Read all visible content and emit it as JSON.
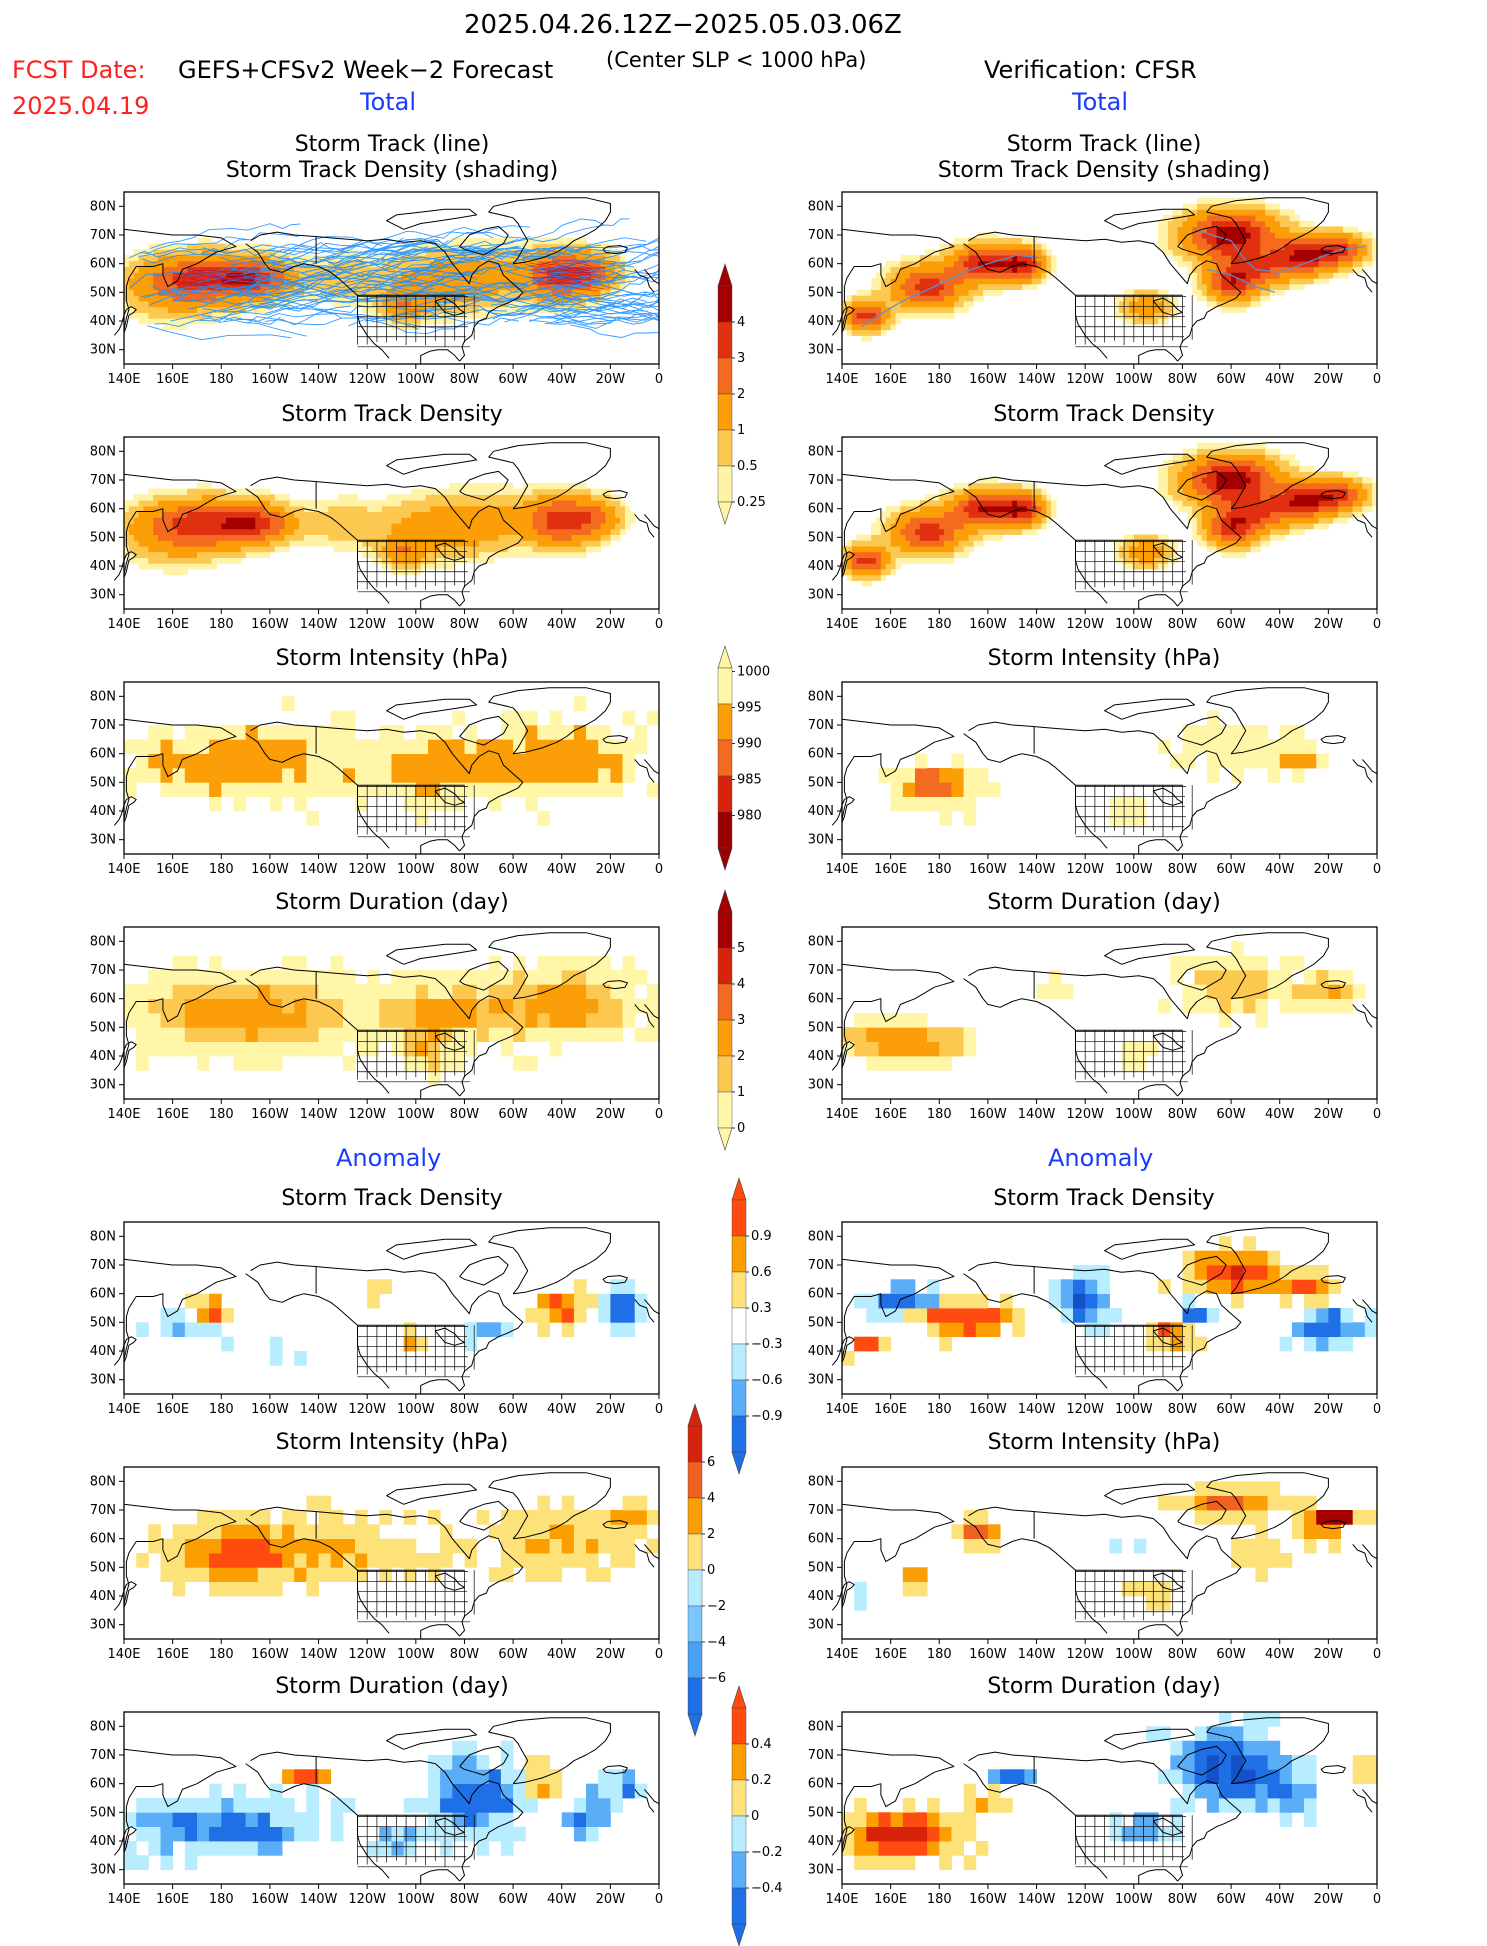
{
  "header": {
    "period": "2025.04.26.12Z−2025.05.03.06Z",
    "fcst_label": "FCST Date:",
    "fcst_date": "2025.04.19",
    "model": "GEFS+CFSv2 Week−2 Forecast",
    "criterion": "(Center SLP < 1000 hPa)",
    "verification": "Verification: CFSR"
  },
  "sections": {
    "total": "Total",
    "anomaly": "Anomaly"
  },
  "axes": {
    "lat_ticks": [
      "80N",
      "70N",
      "60N",
      "50N",
      "40N",
      "30N"
    ],
    "lon_ticks": [
      "140E",
      "160E",
      "180",
      "160W",
      "140W",
      "120W",
      "100W",
      "80W",
      "60W",
      "40W",
      "20W",
      "0"
    ]
  },
  "panel_titles": {
    "track": [
      "Storm Track (line)",
      "Storm Track Density (shading)"
    ],
    "density": "Storm Track Density",
    "intensity": "Storm Intensity (hPa)",
    "duration": "Storm Duration (day)"
  },
  "colorbars": [
    {
      "id": "density",
      "labels": [
        "4",
        "3",
        "2",
        "1",
        "0.5",
        "0.25"
      ],
      "colors": [
        "#a50000",
        "#e03010",
        "#f46a1f",
        "#fb9e08",
        "#fdc850",
        "#fff3a8"
      ]
    },
    {
      "id": "intensity",
      "labels": [
        "1000",
        "995",
        "990",
        "985",
        "980"
      ],
      "colors": [
        "#fff6a8",
        "#fb9e08",
        "#f26b1e",
        "#d8230c",
        "#9b0000"
      ]
    },
    {
      "id": "duration",
      "labels": [
        "5",
        "4",
        "3",
        "2",
        "1",
        "0"
      ],
      "colors": [
        "#a50000",
        "#d8230c",
        "#f26b1e",
        "#fb9e08",
        "#fdc850",
        "#fff6a8"
      ]
    },
    {
      "id": "anom-density",
      "labels": [
        "0.9",
        "0.6",
        "0.3",
        "−0.3",
        "−0.6",
        "−0.9"
      ],
      "colors": [
        "#ff4a10",
        "#fd9e00",
        "#fde27a",
        "#ffffff",
        "#b8ecff",
        "#5aaef8",
        "#1f6fe6"
      ]
    },
    {
      "id": "anom-intensity",
      "labels": [
        "6",
        "4",
        "2",
        "0",
        "−2",
        "−4",
        "−6"
      ],
      "colors": [
        "#d8230c",
        "#f06020",
        "#fb9e08",
        "#fde27a",
        "#b8ecff",
        "#7ac6ff",
        "#4aa0f4",
        "#1f6fe6"
      ]
    },
    {
      "id": "anom-duration",
      "labels": [
        "0.4",
        "0.2",
        "0",
        "−0.2",
        "−0.4"
      ],
      "colors": [
        "#ff4a10",
        "#fd9e00",
        "#fde27a",
        "#b8ecff",
        "#5aaef8",
        "#1f6fe6"
      ]
    }
  ],
  "palette": {
    "blue_accent": "#1a3cff",
    "red_accent": "#ff2020",
    "track_line": "#1e90ff"
  }
}
